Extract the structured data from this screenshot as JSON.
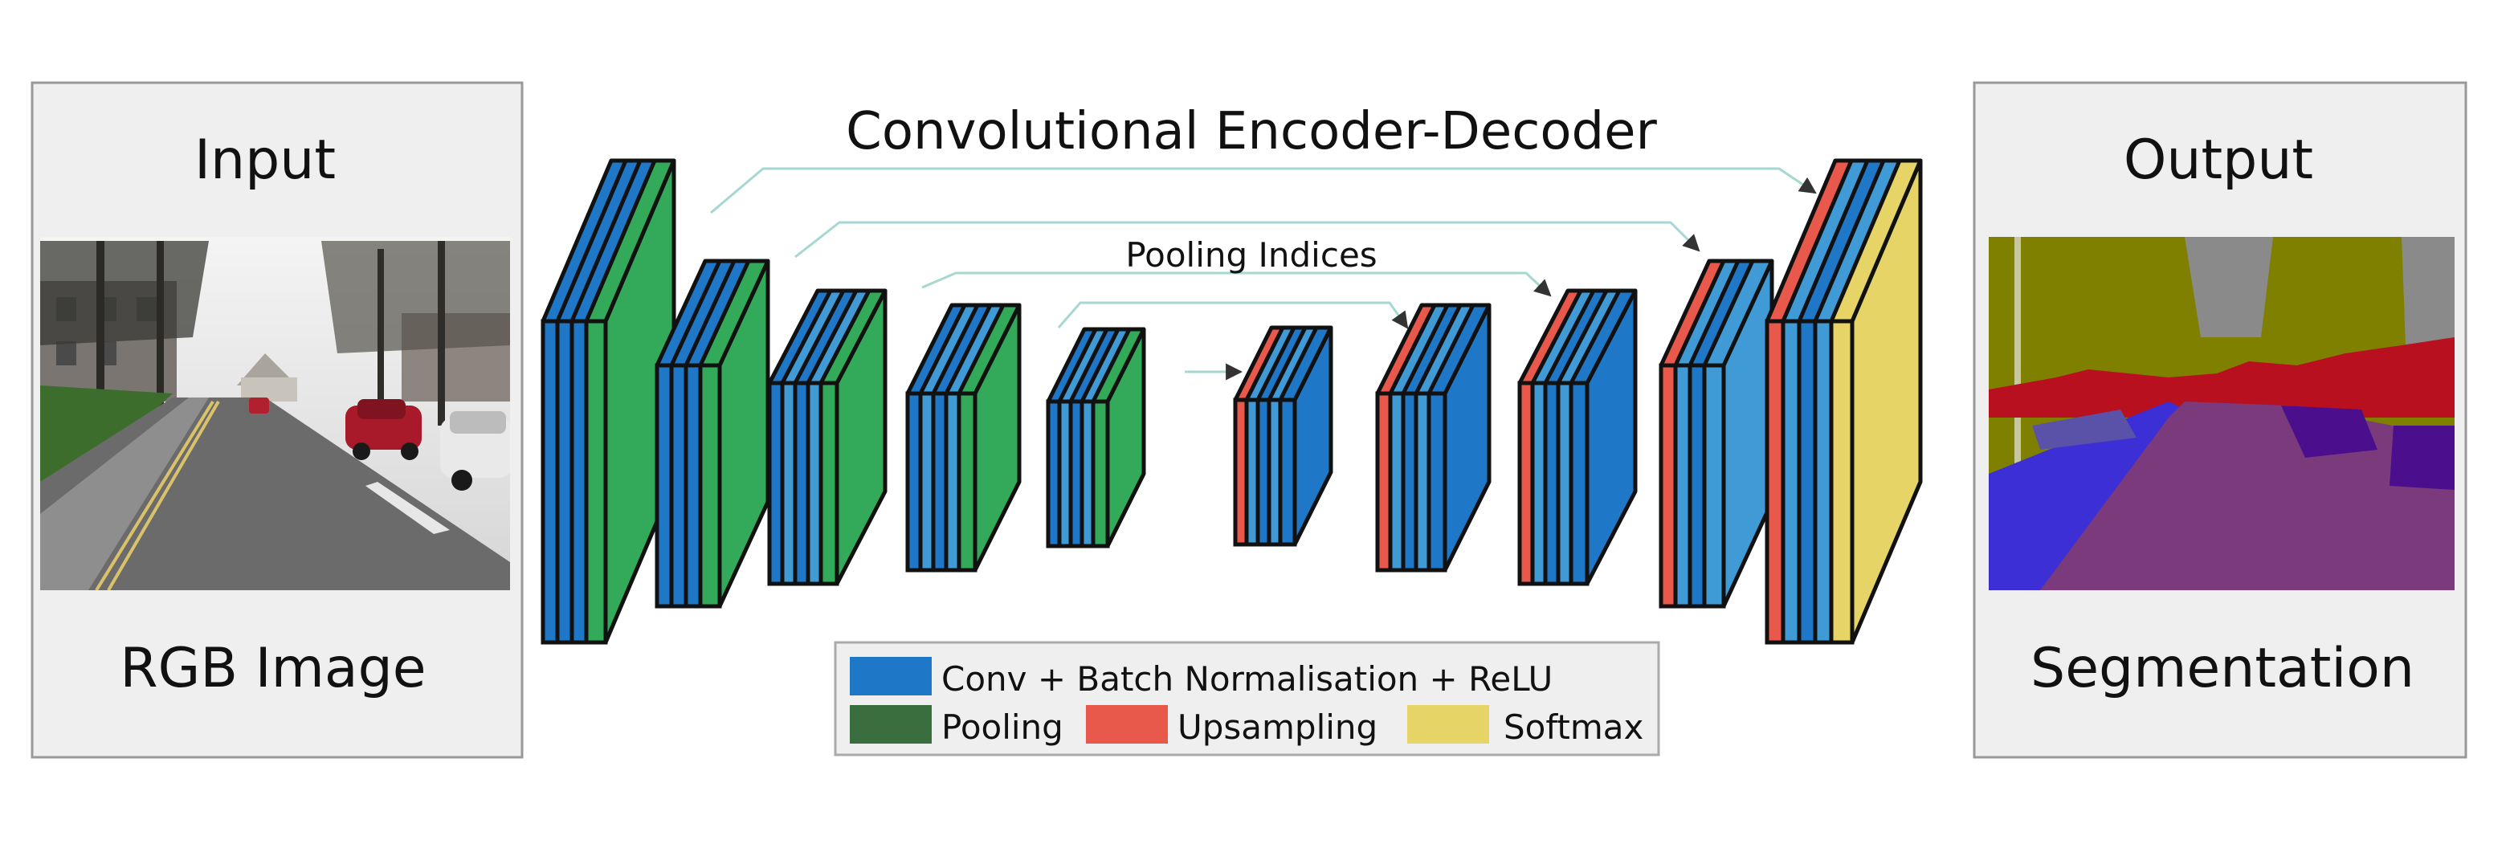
{
  "title": "Convolutional Encoder-Decoder",
  "skip_label": "Pooling Indices",
  "input_panel": {
    "heading": "Input",
    "caption": "RGB Image"
  },
  "output_panel": {
    "heading": "Output",
    "caption": "Segmentation"
  },
  "legend": [
    {
      "label": "Conv + Batch Normalisation + ReLU",
      "color": "#1f77c8",
      "swatch": "conv"
    },
    {
      "label": "Pooling",
      "color": "#3a6e3e",
      "swatch": "pool"
    },
    {
      "label": "Upsampling",
      "color": "#e8594c",
      "swatch": "up"
    },
    {
      "label": "Softmax",
      "color": "#e6d467",
      "swatch": "softmax"
    }
  ],
  "colors": {
    "conv": "#1f77c8",
    "conv_light": "#3f9ad6",
    "pooling": "#33aa5a",
    "upsampling": "#e8594c",
    "softmax": "#e6d467",
    "skip_line": "#a7d7d2",
    "panel_bg": "#efefef",
    "panel_border": "#999999"
  },
  "architecture": {
    "encoder": [
      {
        "stage": 1,
        "layers": [
          "conv",
          "conv",
          "conv",
          "pool"
        ]
      },
      {
        "stage": 2,
        "layers": [
          "conv",
          "conv",
          "conv",
          "pool"
        ]
      },
      {
        "stage": 3,
        "layers": [
          "conv",
          "conv",
          "conv",
          "conv",
          "pool"
        ]
      },
      {
        "stage": 4,
        "layers": [
          "conv",
          "conv",
          "conv",
          "conv",
          "pool"
        ]
      },
      {
        "stage": 5,
        "layers": [
          "conv",
          "conv",
          "conv",
          "conv",
          "pool"
        ]
      }
    ],
    "decoder": [
      {
        "stage": 5,
        "layers": [
          "up",
          "conv",
          "conv",
          "conv",
          "conv"
        ]
      },
      {
        "stage": 4,
        "layers": [
          "up",
          "conv",
          "conv",
          "conv",
          "conv"
        ]
      },
      {
        "stage": 3,
        "layers": [
          "up",
          "conv",
          "conv",
          "conv",
          "conv"
        ]
      },
      {
        "stage": 2,
        "layers": [
          "up",
          "conv",
          "conv",
          "conv"
        ]
      },
      {
        "stage": 1,
        "layers": [
          "up",
          "conv",
          "conv",
          "conv",
          "softmax"
        ]
      }
    ]
  }
}
